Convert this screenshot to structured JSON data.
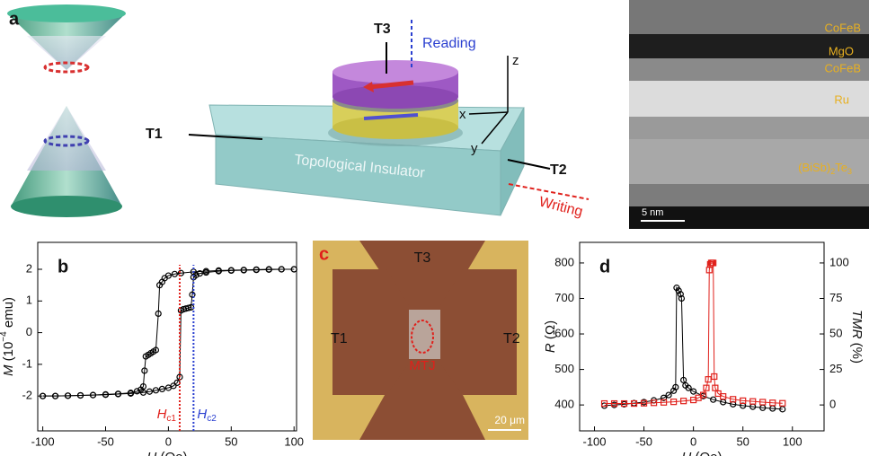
{
  "panel_a": {
    "label": "a",
    "t3": "T3",
    "reading": "Reading",
    "z": "z",
    "x": "x",
    "y": "y",
    "t1": "T1",
    "t2": "T2",
    "insulator": "Topological Insulator",
    "writing": "Writing"
  },
  "tem": {
    "layers": [
      "CoFeB",
      "MgO",
      "CoFeB",
      "Ru"
    ],
    "bst": {
      "base": "(BiSb)",
      "sub1": "2",
      "mid": "Te",
      "sub2": "3"
    },
    "scale": "5 nm"
  },
  "panel_c": {
    "label": "c",
    "t3": "T3",
    "t1": "T1",
    "t2": "T2",
    "mtj": "MTJ",
    "scale": "20 μm"
  },
  "chart_data": [
    {
      "type": "scatter",
      "panel_label": "b",
      "xlabel": {
        "var": "H",
        "unit": " (Oe)"
      },
      "ylabel": {
        "var": "M",
        "pre": " (10",
        "sup": "−4",
        "post": " emu)"
      },
      "xlim": [
        -104,
        102
      ],
      "xticks": [
        -100,
        -50,
        0,
        50,
        100
      ],
      "ylim": [
        -3.1,
        2.85
      ],
      "yticks": [
        -2,
        -1,
        0,
        1,
        2
      ],
      "series": [
        {
          "color": "#000000",
          "marker": "circle",
          "x": [
            -100,
            -90,
            -80,
            -70,
            -60,
            -50,
            -40,
            -30,
            -20,
            -15,
            -10,
            -5,
            0,
            4,
            7,
            9,
            10,
            12,
            14,
            16,
            18,
            19,
            20,
            22,
            25,
            30,
            40,
            50,
            60,
            70,
            80,
            90,
            100
          ],
          "values": [
            -2.0,
            -2.0,
            -1.99,
            -1.98,
            -1.97,
            -1.96,
            -1.94,
            -1.92,
            -1.89,
            -1.86,
            -1.82,
            -1.78,
            -1.74,
            -1.68,
            -1.58,
            -1.4,
            0.7,
            0.74,
            0.76,
            0.78,
            0.8,
            1.2,
            1.75,
            1.82,
            1.87,
            1.9,
            1.94,
            1.96,
            1.97,
            1.98,
            1.99,
            2.0,
            2.0
          ]
        },
        {
          "color": "#000000",
          "marker": "circle",
          "x": [
            100,
            90,
            80,
            70,
            60,
            50,
            40,
            30,
            20,
            10,
            5,
            0,
            -3,
            -5,
            -7,
            -8,
            -10,
            -12,
            -14,
            -16,
            -18,
            -19,
            -20,
            -22,
            -25,
            -30,
            -40,
            -50,
            -60,
            -70,
            -80,
            -90,
            -100
          ],
          "values": [
            2.0,
            2.0,
            2.0,
            1.99,
            1.98,
            1.97,
            1.96,
            1.94,
            1.92,
            1.88,
            1.85,
            1.8,
            1.72,
            1.6,
            1.5,
            0.6,
            -0.55,
            -0.6,
            -0.65,
            -0.7,
            -0.75,
            -1.2,
            -1.7,
            -1.8,
            -1.85,
            -1.9,
            -1.93,
            -1.95,
            -1.97,
            -1.98,
            -1.99,
            -2.0,
            -2.0
          ]
        }
      ],
      "annotations": [
        {
          "var": "H",
          "sub": "c1",
          "x": 9,
          "color": "#e0201b"
        },
        {
          "var": "H",
          "sub": "c2",
          "x": 20,
          "color": "#2a3fd0"
        }
      ]
    },
    {
      "type": "scatter",
      "panel_label": "d",
      "xlabel": {
        "var": "H",
        "unit": " (Oe)"
      },
      "ylabel": {
        "var": "R",
        "unit": " (Ω)"
      },
      "y2label": {
        "var": "TMR",
        "unit": " (%)"
      },
      "xlim": [
        -115,
        132
      ],
      "xticks": [
        -100,
        -50,
        0,
        50,
        100
      ],
      "ylim": [
        327,
        858
      ],
      "yticks": [
        400,
        500,
        600,
        700,
        800
      ],
      "y2lim": [
        -18.25,
        114.5
      ],
      "y2ticks": [
        0,
        25,
        50,
        75,
        100
      ],
      "series": [
        {
          "color": "#000000",
          "marker": "circle",
          "x": [
            -90,
            -80,
            -70,
            -60,
            -50,
            -40,
            -30,
            -25,
            -20,
            -18,
            -17,
            -15,
            -13,
            -12,
            -10,
            -8,
            -5,
            0,
            10,
            20,
            30,
            40,
            50,
            60,
            70,
            80,
            90
          ],
          "values": [
            398,
            400,
            402,
            405,
            408,
            413,
            420,
            428,
            440,
            450,
            730,
            722,
            712,
            700,
            470,
            455,
            448,
            438,
            425,
            415,
            408,
            402,
            398,
            395,
            392,
            390,
            388
          ]
        },
        {
          "color": "#e0201b",
          "marker": "square",
          "axis": "y2",
          "x": [
            -90,
            -80,
            -70,
            -60,
            -50,
            -40,
            -30,
            -20,
            -10,
            0,
            5,
            10,
            13,
            15,
            16,
            17,
            18,
            19,
            20,
            21,
            22,
            25,
            30,
            40,
            50,
            60,
            70,
            80,
            90
          ],
          "values": [
            1,
            1,
            1,
            1,
            1.2,
            1.5,
            1.8,
            2.2,
            2.8,
            3.5,
            5,
            7,
            12,
            18,
            95,
            99,
            100,
            100,
            100,
            20,
            12,
            8,
            6,
            4,
            3,
            2.5,
            2,
            1.5,
            1.2
          ]
        }
      ]
    }
  ]
}
